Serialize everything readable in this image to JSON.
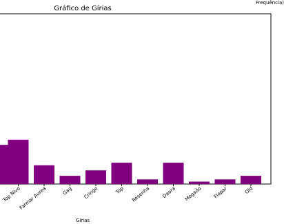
{
  "chart_data": {
    "type": "bar",
    "title": "Gráfico de Gírias",
    "xlabel": "Gírias",
    "ylabel": "",
    "categories": [
      "Farmar Aurea",
      "Gag",
      "Cringe",
      "Top",
      "Resenha",
      "Daora",
      "Mogado",
      "Flopar",
      "Old"
    ],
    "values": [
      11,
      4.8,
      8,
      12.5,
      2.7,
      12.5,
      1.4,
      2.7,
      4.8
    ],
    "visible_partial": {
      "cut_top_text": "Frequência)",
      "cut_label_left": "Top Nivo",
      "cut_bar_values": [
        23,
        26
      ]
    },
    "ylim": [
      0,
      100
    ],
    "bar_color": "#800080",
    "grid": false
  }
}
